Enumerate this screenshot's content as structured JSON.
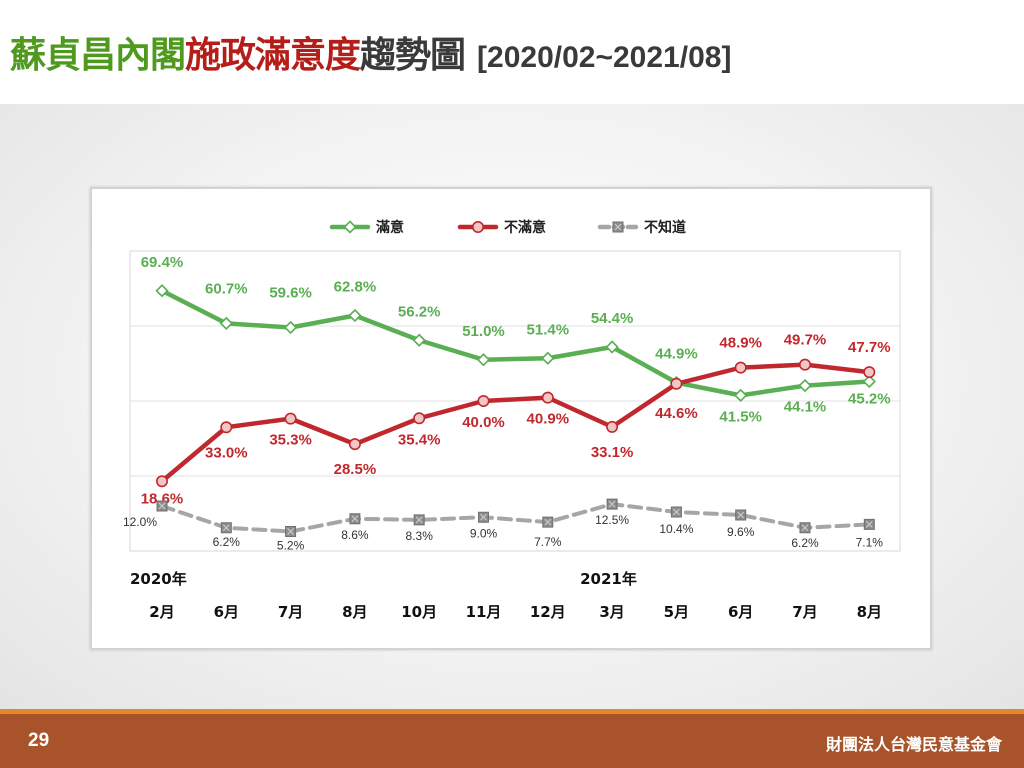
{
  "title": {
    "part1": "蘇貞昌內閣",
    "part2": "施政滿意度",
    "part3": "趨勢圖",
    "range": "[2020/02~2021/08]"
  },
  "colors": {
    "title_green": "#4f9a1e",
    "title_red": "#b51d18",
    "satisfied": "#5aae53",
    "dissatisfied": "#c0282d",
    "unknown": "#a6a6a6",
    "footer": "#a9532b",
    "footer_line": "#e3892a"
  },
  "chart_data": {
    "type": "line",
    "categories": [
      "2月",
      "6月",
      "7月",
      "8月",
      "10月",
      "11月",
      "12月",
      "3月",
      "5月",
      "6月",
      "7月",
      "8月"
    ],
    "year_labels": [
      {
        "label": "2020年",
        "category_index": 0
      },
      {
        "label": "2021年",
        "category_index": 7
      }
    ],
    "series": [
      {
        "name": "滿意",
        "values": [
          69.4,
          60.7,
          59.6,
          62.8,
          56.2,
          51.0,
          51.4,
          54.4,
          44.9,
          41.5,
          44.1,
          45.2
        ],
        "labels": [
          "69.4%",
          "60.7%",
          "59.6%",
          "62.8%",
          "56.2%",
          "51.0%",
          "51.4%",
          "54.4%",
          "44.9%",
          "41.5%",
          "44.1%",
          "45.2%"
        ]
      },
      {
        "name": "不滿意",
        "values": [
          18.6,
          33.0,
          35.3,
          28.5,
          35.4,
          40.0,
          40.9,
          33.1,
          44.6,
          48.9,
          49.7,
          47.7
        ],
        "labels": [
          "18.6%",
          "33.0%",
          "35.3%",
          "28.5%",
          "35.4%",
          "40.0%",
          "40.9%",
          "33.1%",
          "44.6%",
          "48.9%",
          "49.7%",
          "47.7%"
        ]
      },
      {
        "name": "不知道",
        "values": [
          12.0,
          6.2,
          5.2,
          8.6,
          8.3,
          9.0,
          7.7,
          12.5,
          10.4,
          9.6,
          6.2,
          7.1
        ],
        "labels": [
          "12.0%",
          "6.2%",
          "5.2%",
          "8.6%",
          "8.3%",
          "9.0%",
          "7.7%",
          "12.5%",
          "10.4%",
          "9.6%",
          "6.2%",
          "7.1%"
        ]
      }
    ],
    "ylim": [
      0,
      80
    ],
    "grid": true,
    "legend": "top-center",
    "xlabel": "",
    "ylabel": ""
  },
  "footer": {
    "page_number": "29",
    "organization": "財團法人台灣民意基金會"
  }
}
